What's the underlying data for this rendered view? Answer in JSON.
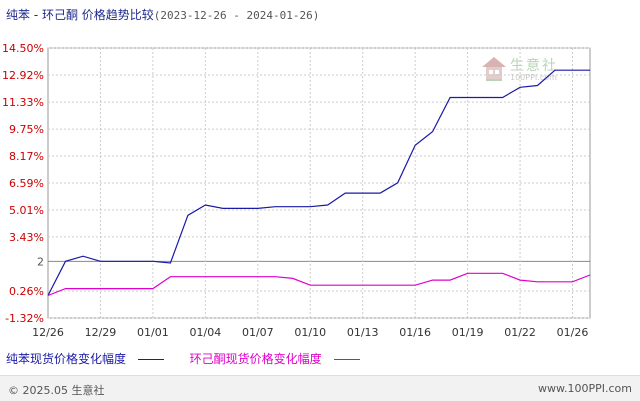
{
  "title": {
    "main": "纯苯 - 环己酮 价格趋势比较",
    "range": "(2023-12-26 - 2024-01-26)"
  },
  "footer": {
    "left": "© 2025.05 生意社",
    "right": "www.100PPI.com"
  },
  "watermark": {
    "text": "生意社",
    "url": "100PPI.com"
  },
  "colors": {
    "series1": "#1a1aa6",
    "series2": "#e000cc",
    "ytick": "#cc0000",
    "grid": "#cccccc",
    "baseline": "#888888"
  },
  "chart_data": {
    "type": "line",
    "title": "纯苯 - 环己酮 价格趋势比较",
    "xlabel": "",
    "ylabel": "",
    "ylim": [
      -1.32,
      14.5
    ],
    "y_ticks": [
      "14.50%",
      "12.92%",
      "11.33%",
      "9.75%",
      "8.17%",
      "6.59%",
      "5.01%",
      "3.43%",
      "2",
      "0.26%",
      "-1.32%"
    ],
    "y_tick_values": [
      14.5,
      12.92,
      11.33,
      9.75,
      8.17,
      6.59,
      5.01,
      3.43,
      2,
      0.26,
      -1.32
    ],
    "x_ticks": [
      "12/26",
      "12/29",
      "01/01",
      "01/04",
      "01/07",
      "01/10",
      "01/13",
      "01/16",
      "01/19",
      "01/22",
      "01/26"
    ],
    "x_tick_positions": [
      0,
      3,
      6,
      9,
      12,
      15,
      18,
      21,
      24,
      27,
      30
    ],
    "x_range": [
      0,
      31
    ],
    "grid": true,
    "baseline_value": 2,
    "series": [
      {
        "name": "纯苯现货价格变化幅度",
        "points": [
          [
            0,
            0
          ],
          [
            1,
            2
          ],
          [
            2,
            2.3
          ],
          [
            3,
            2
          ],
          [
            4,
            2
          ],
          [
            5,
            2
          ],
          [
            6,
            2
          ],
          [
            7,
            1.9
          ],
          [
            8,
            4.7
          ],
          [
            9,
            5.3
          ],
          [
            10,
            5.1
          ],
          [
            11,
            5.1
          ],
          [
            12,
            5.1
          ],
          [
            13,
            5.2
          ],
          [
            14,
            5.2
          ],
          [
            15,
            5.2
          ],
          [
            16,
            5.3
          ],
          [
            17,
            6
          ],
          [
            18,
            6
          ],
          [
            19,
            6
          ],
          [
            20,
            6.6
          ],
          [
            21,
            8.8
          ],
          [
            22,
            9.6
          ],
          [
            23,
            11.6
          ],
          [
            24,
            11.6
          ],
          [
            25,
            11.6
          ],
          [
            26,
            11.6
          ],
          [
            27,
            12.2
          ],
          [
            28,
            12.3
          ],
          [
            29,
            13.2
          ],
          [
            30,
            13.2
          ],
          [
            31,
            13.2
          ]
        ]
      },
      {
        "name": "环己酮现货价格变化幅度",
        "points": [
          [
            0,
            0
          ],
          [
            1,
            0.4
          ],
          [
            2,
            0.4
          ],
          [
            3,
            0.4
          ],
          [
            4,
            0.4
          ],
          [
            5,
            0.4
          ],
          [
            6,
            0.4
          ],
          [
            7,
            1.1
          ],
          [
            8,
            1.1
          ],
          [
            9,
            1.1
          ],
          [
            10,
            1.1
          ],
          [
            11,
            1.1
          ],
          [
            12,
            1.1
          ],
          [
            13,
            1.1
          ],
          [
            14,
            1
          ],
          [
            15,
            0.6
          ],
          [
            16,
            0.6
          ],
          [
            17,
            0.6
          ],
          [
            18,
            0.6
          ],
          [
            19,
            0.6
          ],
          [
            20,
            0.6
          ],
          [
            21,
            0.6
          ],
          [
            22,
            0.9
          ],
          [
            23,
            0.9
          ],
          [
            24,
            1.3
          ],
          [
            25,
            1.3
          ],
          [
            26,
            1.3
          ],
          [
            27,
            0.9
          ],
          [
            28,
            0.8
          ],
          [
            29,
            0.8
          ],
          [
            30,
            0.8
          ],
          [
            31,
            1.2
          ]
        ]
      }
    ]
  }
}
